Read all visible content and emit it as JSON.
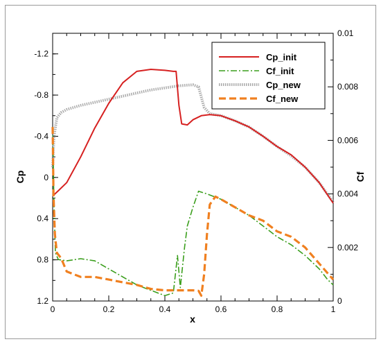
{
  "chart_data": {
    "type": "line",
    "title": "",
    "xlabel": "x",
    "ylabel_left": "Cp",
    "ylabel_right": "Cf",
    "xlim": [
      0,
      1
    ],
    "ylim_left": [
      1.2,
      -1.4
    ],
    "ylim_right": [
      0,
      0.01
    ],
    "x_ticks": [
      "0",
      "0.2",
      "0.4",
      "0.6",
      "0.8",
      "1"
    ],
    "y_left_ticks": [
      "-1.2",
      "-0.8",
      "-0.4",
      "0",
      "0.4",
      "0.8",
      "1.2"
    ],
    "y_right_ticks": [
      "0",
      "0.002",
      "0.004",
      "0.006",
      "0.008",
      "0.01"
    ],
    "grid": false,
    "legend_position": "top-right",
    "series": [
      {
        "name": "Cp_init",
        "axis": "left",
        "color": "#d62020",
        "style": "solid",
        "x": [
          0.0,
          0.02,
          0.05,
          0.1,
          0.15,
          0.2,
          0.25,
          0.3,
          0.35,
          0.4,
          0.43,
          0.44,
          0.45,
          0.46,
          0.48,
          0.5,
          0.53,
          0.56,
          0.6,
          0.65,
          0.7,
          0.75,
          0.8,
          0.85,
          0.9,
          0.95,
          1.0
        ],
        "y": [
          0.18,
          0.13,
          0.05,
          -0.2,
          -0.48,
          -0.72,
          -0.92,
          -1.03,
          -1.05,
          -1.04,
          -1.03,
          -1.03,
          -0.7,
          -0.52,
          -0.51,
          -0.56,
          -0.6,
          -0.61,
          -0.6,
          -0.55,
          -0.49,
          -0.4,
          -0.3,
          -0.22,
          -0.1,
          0.05,
          0.25
        ]
      },
      {
        "name": "Cf_init",
        "axis": "right",
        "color": "#3a9e1c",
        "style": "dashdot",
        "x": [
          0.0,
          0.005,
          0.01,
          0.02,
          0.05,
          0.1,
          0.15,
          0.2,
          0.25,
          0.3,
          0.35,
          0.4,
          0.43,
          0.445,
          0.455,
          0.47,
          0.48,
          0.5,
          0.52,
          0.55,
          0.6,
          0.65,
          0.7,
          0.75,
          0.8,
          0.85,
          0.9,
          0.95,
          0.98,
          1.0
        ],
        "y": [
          0.0065,
          0.0035,
          0.0018,
          0.00155,
          0.0015,
          0.00158,
          0.0015,
          0.0012,
          0.0009,
          0.0006,
          0.0004,
          0.0002,
          0.0003,
          0.0017,
          0.0005,
          0.002,
          0.0028,
          0.0035,
          0.0041,
          0.004,
          0.0038,
          0.0035,
          0.0032,
          0.0028,
          0.0024,
          0.0021,
          0.0017,
          0.0012,
          0.0008,
          0.0006
        ]
      },
      {
        "name": "Cp_new",
        "axis": "left",
        "color": "#aaaaaa",
        "style": "dotted",
        "x": [
          0.0,
          0.005,
          0.015,
          0.03,
          0.05,
          0.1,
          0.15,
          0.2,
          0.25,
          0.3,
          0.35,
          0.4,
          0.45,
          0.5,
          0.52,
          0.54,
          0.56,
          0.6,
          0.65,
          0.7,
          0.75,
          0.8,
          0.85,
          0.9,
          0.95,
          1.0
        ],
        "y": [
          -0.1,
          -0.4,
          -0.58,
          -0.63,
          -0.66,
          -0.7,
          -0.73,
          -0.76,
          -0.79,
          -0.82,
          -0.85,
          -0.87,
          -0.89,
          -0.9,
          -0.88,
          -0.68,
          -0.62,
          -0.6,
          -0.55,
          -0.49,
          -0.4,
          -0.3,
          -0.21,
          -0.1,
          0.05,
          0.24
        ]
      },
      {
        "name": "Cf_new",
        "axis": "right",
        "color": "#f08020",
        "style": "dashed",
        "x": [
          0.0,
          0.003,
          0.008,
          0.015,
          0.03,
          0.05,
          0.1,
          0.15,
          0.2,
          0.25,
          0.3,
          0.35,
          0.4,
          0.45,
          0.5,
          0.52,
          0.53,
          0.54,
          0.55,
          0.56,
          0.58,
          0.6,
          0.65,
          0.7,
          0.75,
          0.8,
          0.85,
          0.9,
          0.95,
          1.0
        ],
        "y": [
          0.0065,
          0.004,
          0.0025,
          0.0018,
          0.0016,
          0.0011,
          0.0009,
          0.0009,
          0.0008,
          0.0007,
          0.0006,
          0.00045,
          0.0004,
          0.0004,
          0.0004,
          0.00038,
          0.0002,
          0.001,
          0.0025,
          0.0036,
          0.0039,
          0.0038,
          0.0035,
          0.0032,
          0.003,
          0.0026,
          0.0024,
          0.002,
          0.0014,
          0.0008
        ]
      }
    ]
  }
}
